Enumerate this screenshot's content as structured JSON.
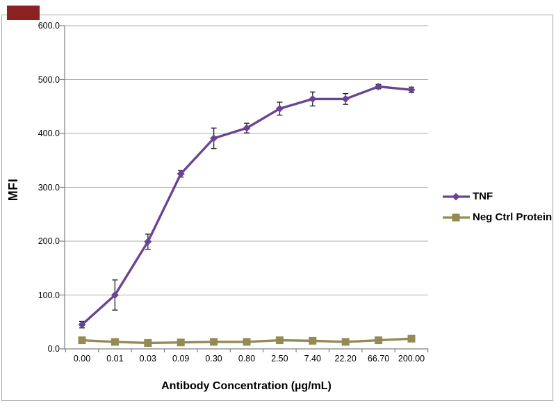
{
  "logo_badge": {
    "color": "#8B2121"
  },
  "chart_data": {
    "type": "line",
    "title": "",
    "xlabel": "Antibody Concentration (µg/mL)",
    "ylabel": "MFI",
    "categories": [
      "0.00",
      "0.01",
      "0.03",
      "0.09",
      "0.30",
      "0.80",
      "2.50",
      "7.40",
      "22.20",
      "66.70",
      "200.00"
    ],
    "y_tick_labels": [
      "0.0",
      "100.0",
      "200.0",
      "300.0",
      "400.0",
      "500.0",
      "600.0"
    ],
    "ylim": [
      0,
      600
    ],
    "grid": true,
    "legend_position": "right",
    "series": [
      {
        "name": "TNF",
        "color": "#6A4394",
        "marker": "diamond",
        "values": [
          45,
          100,
          199,
          325,
          391,
          410,
          446,
          464,
          464,
          487,
          481
        ],
        "errors": [
          6,
          28,
          14,
          6,
          19,
          9,
          12,
          13,
          10,
          4,
          5
        ]
      },
      {
        "name": "Neg Ctrl Protein",
        "color": "#948A54",
        "marker": "square",
        "values": [
          16,
          13,
          11,
          12,
          13,
          13,
          16,
          15,
          13,
          16,
          19
        ],
        "errors": [
          2,
          2,
          2,
          2,
          2,
          2,
          2,
          2,
          2,
          2,
          2
        ]
      }
    ]
  },
  "colors": {
    "grid": "#ACACAC",
    "axis": "#7F7F7F",
    "error_bar": "#1A1A1A",
    "frame_border": "#A6A6A6",
    "background": "#FFFFFF",
    "text": "#000000"
  }
}
